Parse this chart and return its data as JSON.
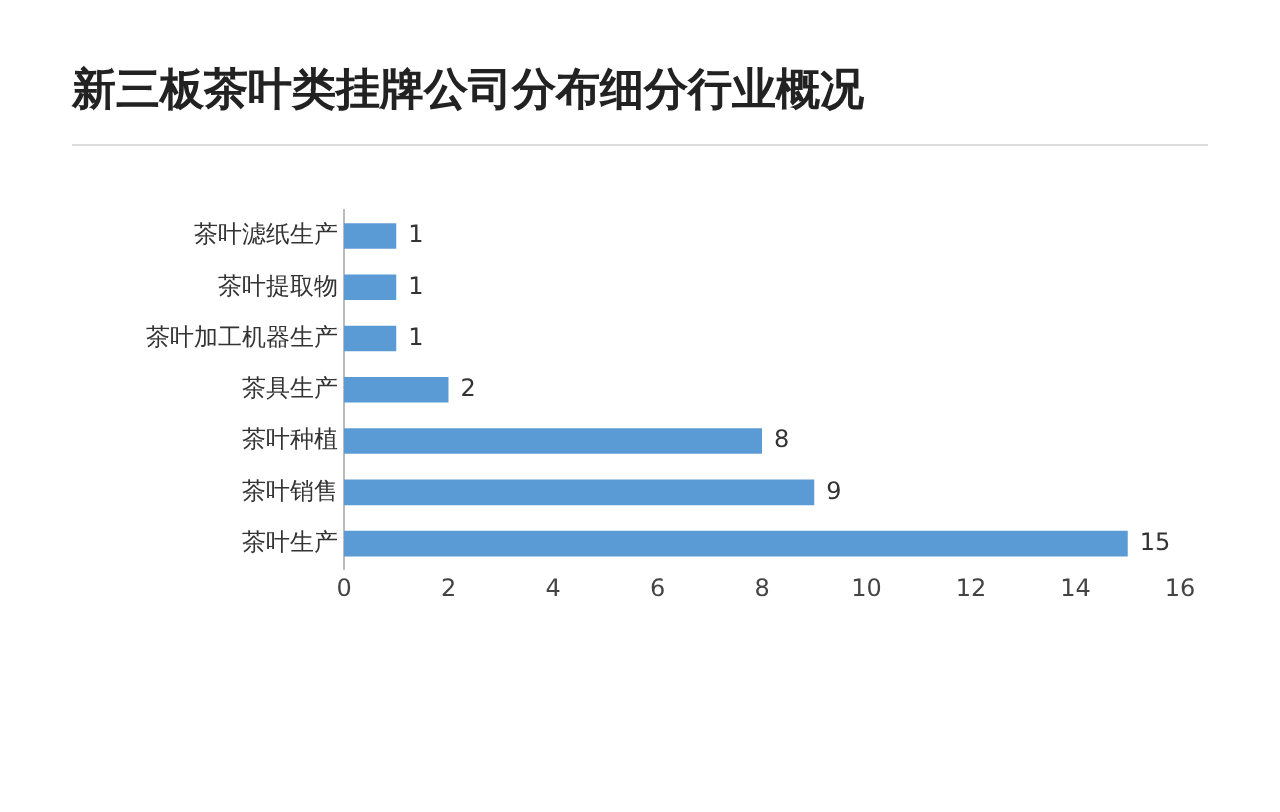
{
  "chart_data": {
    "type": "bar",
    "orientation": "horizontal",
    "title": "新三板茶叶类挂牌公司分布细分行业概况",
    "categories": [
      "茶叶滤纸生产",
      "茶叶提取物",
      "茶叶加工机器生产",
      "茶具生产",
      "茶叶种植",
      "茶叶销售",
      "茶叶生产"
    ],
    "values": [
      1,
      1,
      1,
      2,
      8,
      9,
      15
    ],
    "color": "#5b9bd5",
    "xlim": [
      0,
      16
    ],
    "xticks": [
      0,
      2,
      4,
      6,
      8,
      10,
      12,
      14,
      16
    ],
    "grid": false,
    "legend": false,
    "data_labels": true
  }
}
